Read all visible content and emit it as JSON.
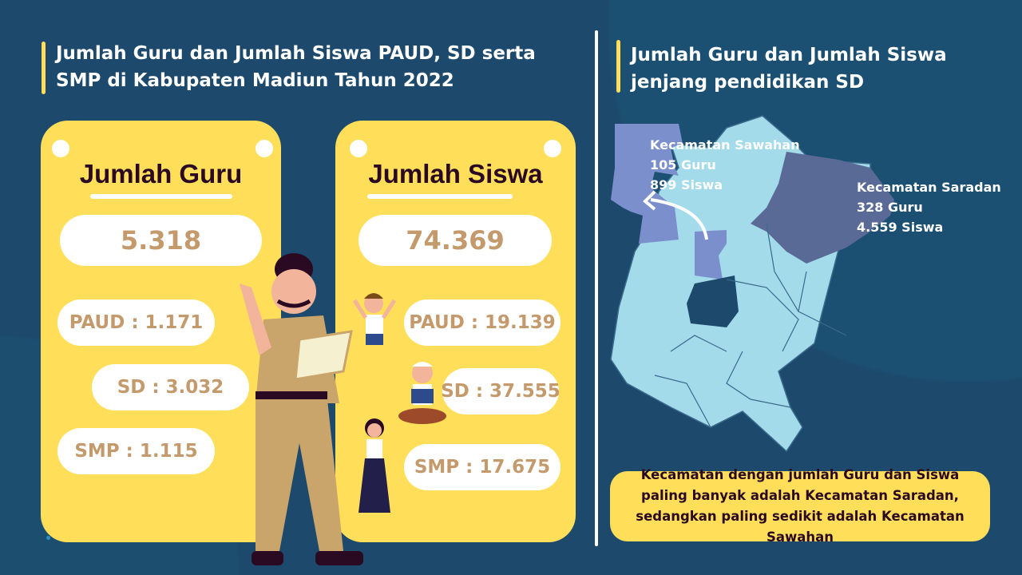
{
  "left_section": {
    "title_line1": "Jumlah Guru dan Jumlah Siswa PAUD, SD serta",
    "title_line2": "SMP di Kabupaten Madiun Tahun 2022"
  },
  "guru_card": {
    "title": "Jumlah Guru",
    "total": "5.318",
    "paud": "PAUD : 1.171",
    "sd": "SD : 3.032",
    "smp": "SMP : 1.115"
  },
  "siswa_card": {
    "title": "Jumlah Siswa",
    "total": "74.369",
    "paud": "PAUD : 19.139",
    "sd": "SD : 37.555",
    "smp": "SMP : 17.675"
  },
  "right_section": {
    "title_line1": "Jumlah Guru dan Jumlah Siswa",
    "title_line2": "jenjang pendidikan SD"
  },
  "map": {
    "sawahan": {
      "name": "Kecamatan Sawahan",
      "guru": "105 Guru",
      "siswa": "899 Siswa",
      "color": "#7b8fcc"
    },
    "saradan": {
      "name": "Kecamatan Saradan",
      "guru": "328 Guru",
      "siswa": "4.559 Siswa",
      "color": "#5a6a96"
    },
    "base_color": "#a3dbeb"
  },
  "conclusion": "Kecamatan dengan jumlah Guru dan Siswa paling banyak adalah Kecamatan Saradan, sedangkan paling sedikit adalah Kecamatan Sawahan",
  "colors": {
    "background": "#1d4a6c",
    "accent": "#ffde59",
    "number_text": "#c49a6c",
    "heading_text": "#2a0a22"
  }
}
